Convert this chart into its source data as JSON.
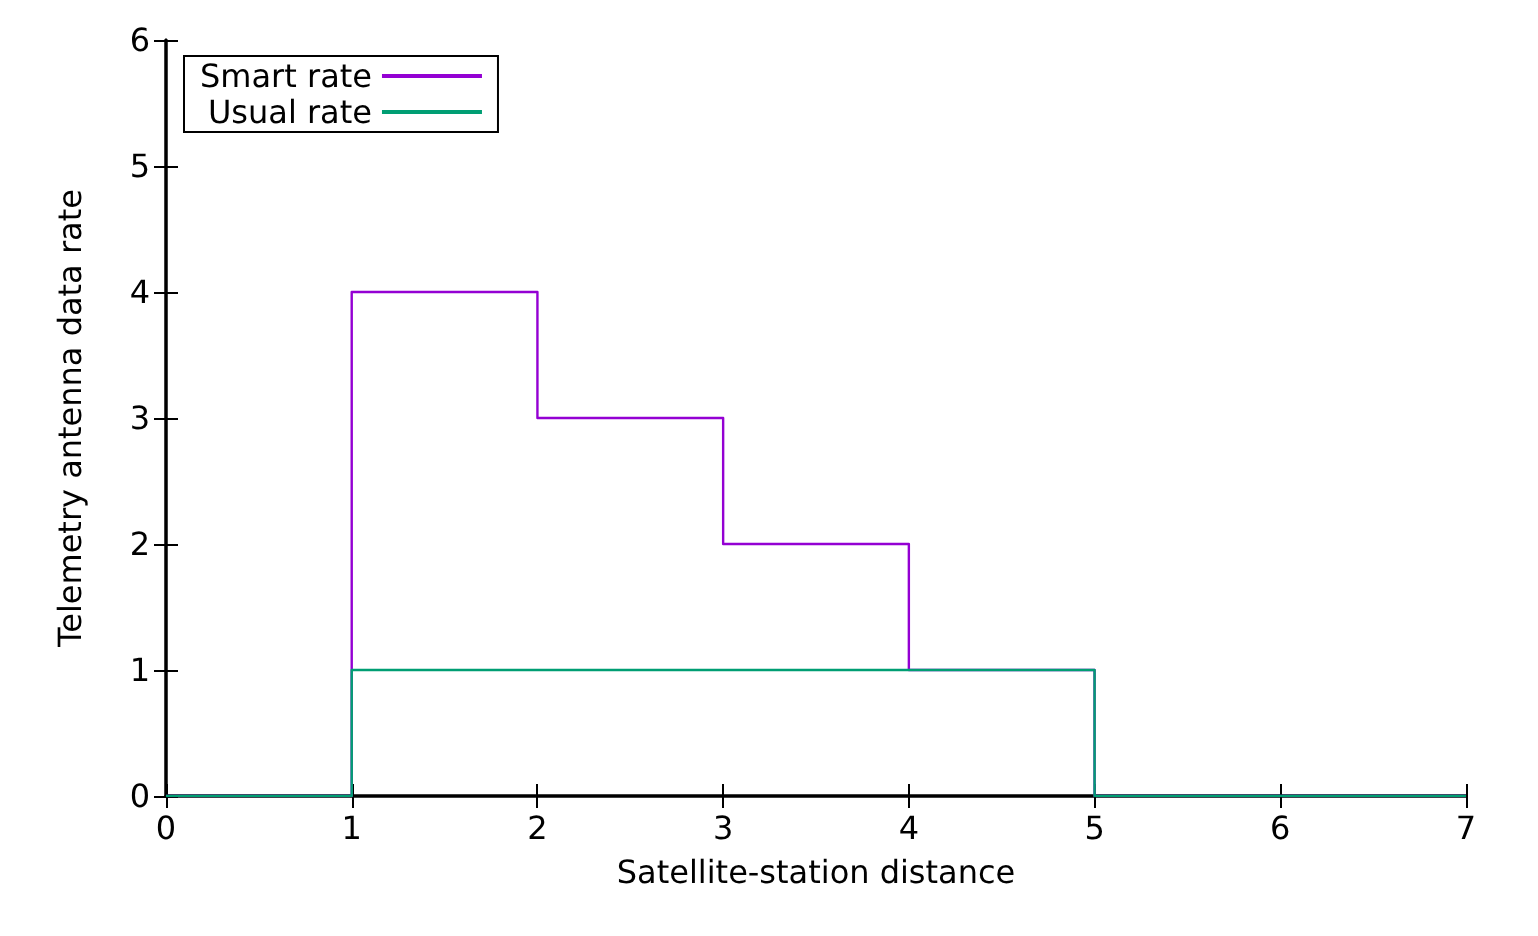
{
  "chart_data": {
    "type": "step",
    "xlabel": "Satellite-station distance",
    "ylabel": "Telemetry antenna data rate",
    "x": [
      0,
      1,
      2,
      3,
      4,
      5,
      7
    ],
    "series": [
      {
        "name": "Smart rate",
        "color": "#9400d3",
        "values": [
          0,
          4,
          3,
          2,
          1,
          0,
          0
        ]
      },
      {
        "name": "Usual rate",
        "color": "#009e73",
        "values": [
          0,
          1,
          1,
          1,
          1,
          0,
          0
        ]
      }
    ],
    "xlim": [
      0,
      7
    ],
    "xticks": [
      0,
      1,
      2,
      3,
      4,
      5,
      6,
      7
    ],
    "ylim": [
      0,
      6
    ],
    "yticks": [
      0,
      1,
      2,
      3,
      4,
      5,
      6
    ],
    "grid": false,
    "legend": "top left",
    "marker": "none",
    "line_style": "solid"
  }
}
